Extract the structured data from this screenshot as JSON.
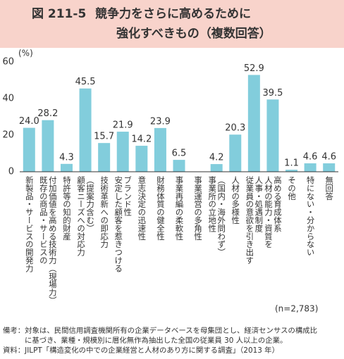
{
  "chart_data": {
    "type": "bar",
    "figure_label": "図 211-5",
    "title": [
      "競争力をさらに高めるために",
      "強化すべきもの（複数回答）"
    ],
    "y_unit": "(%)",
    "categories": [
      "新製品・サービスの開発力",
      "既存の商品・サービスの\n付加価値を高める技術力（現場力）",
      "特許等の知的財産",
      "顧客ニーズへの対応力\n（提案力含む）",
      "技術革新への即応力",
      "安定した顧客を惹きつける\nブランド性",
      "意志決定の迅速性",
      "財務体質の健全性",
      "事業再編の柔軟性",
      "事業運営の多角性",
      "事業所の立地性\n（国内・海外問わず）",
      "人材の多様性",
      "従業員の意欲を引き出す\n人事・処遇制度",
      "人材の能力・資質を\n高める育成体系",
      "その他",
      "特にない・分からない",
      "無回答"
    ],
    "values": [
      24.0,
      28.2,
      4.3,
      45.5,
      15.7,
      21.9,
      14.2,
      23.9,
      6.5,
      null,
      4.2,
      20.3,
      52.9,
      39.5,
      1.1,
      4.6,
      4.6
    ],
    "value_labels": [
      "24.0",
      "28.2",
      "4.3",
      "45.5",
      "15.7",
      "21.9",
      "14.2",
      "23.9",
      "6.5",
      null,
      "4.2",
      "20.3",
      "52.9",
      "39.5",
      "1.1",
      "4.6",
      "4.6"
    ],
    "color": "#82cddc",
    "ylim": [
      0,
      60
    ],
    "yticks": [
      0,
      20,
      40,
      60
    ],
    "n_label": "(n=2,783)",
    "notes": [
      "備考：対象は、民間信用調査機関所有の企業データベースを母集団とし、経済センサスの構成比",
      "に基づき、業種・規模別に層化無作為抽出した全国の従業員 30 人以上の企業。",
      "資料：JILPT「構造変化の中での企業経営と人材のあり方に関する調査」（2013 年）"
    ]
  }
}
